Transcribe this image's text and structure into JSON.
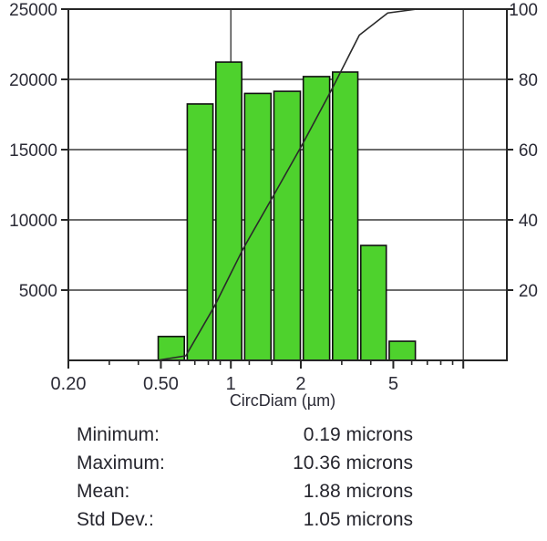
{
  "chart_data": {
    "type": "bar",
    "subtype": "log-scale particle-size histogram with cumulative percent overlay line",
    "title": "",
    "xlabel": "CircDiam (µm)",
    "ylabel_left": "",
    "ylabel_right": "",
    "x_scale": "log",
    "x_range": [
      0.2,
      15.4
    ],
    "bin_edges_microns": [
      0.48,
      0.64,
      0.85,
      1.13,
      1.51,
      2.02,
      2.7,
      3.57,
      4.73,
      6.31
    ],
    "bin_counts": [
      1700,
      18250,
      21230,
      19000,
      19150,
      20200,
      20520,
      8180,
      1360
    ],
    "cumulative_line": {
      "x_microns": [
        0.48,
        0.64,
        0.85,
        1.13,
        1.51,
        2.02,
        2.7,
        3.57,
        4.73,
        6.31,
        15.3
      ],
      "percent": [
        0,
        1.3,
        15.4,
        31.8,
        46.4,
        61.2,
        76.8,
        92.6,
        98.9,
        100,
        100
      ]
    },
    "y_left": {
      "range": [
        0,
        25000
      ],
      "tick_values": [
        5000,
        10000,
        15000,
        20000,
        25000
      ],
      "tick_labels": [
        "5000",
        "10000",
        "15000",
        "20000",
        "25000"
      ]
    },
    "y_right": {
      "range": [
        0,
        100
      ],
      "tick_values": [
        20,
        40,
        60,
        80,
        100
      ],
      "tick_labels": [
        "20",
        "40",
        "60",
        "80",
        "100"
      ]
    },
    "x_ticks_major": [
      {
        "value": 0.2,
        "label": "0.20"
      },
      {
        "value": 0.5,
        "label": "0.50"
      },
      {
        "value": 1,
        "label": "1"
      },
      {
        "value": 2,
        "label": "2"
      },
      {
        "value": 5,
        "label": "5"
      },
      {
        "value": 10,
        "label": ""
      }
    ],
    "x_ticks_minor": [
      0.3,
      0.4,
      0.6,
      0.7,
      0.8,
      0.9,
      1.2,
      1.5,
      3,
      4,
      6,
      7,
      8,
      9
    ],
    "x_gridlines": [
      1,
      10
    ],
    "grid": "horizontal gridlines at 5000/10000/15000/20000 (= 20/40/60/80 %), vertical gridlines at 1 and 10",
    "legend": "none",
    "colors": {
      "bar_fill": "#4ed22d",
      "bar_stroke": "#101010",
      "cumulative_line": "#2a2a2a",
      "grid_line": "#3a3a3a",
      "axis_line": "#262626",
      "text": "#2b2b36"
    }
  },
  "stats": {
    "rows": [
      {
        "label": "Minimum:",
        "value": "0.19 microns"
      },
      {
        "label": "Maximum:",
        "value": "10.36 microns"
      },
      {
        "label": "Mean:",
        "value": "1.88 microns"
      },
      {
        "label": "Std Dev.:",
        "value": "1.05 microns"
      }
    ]
  }
}
